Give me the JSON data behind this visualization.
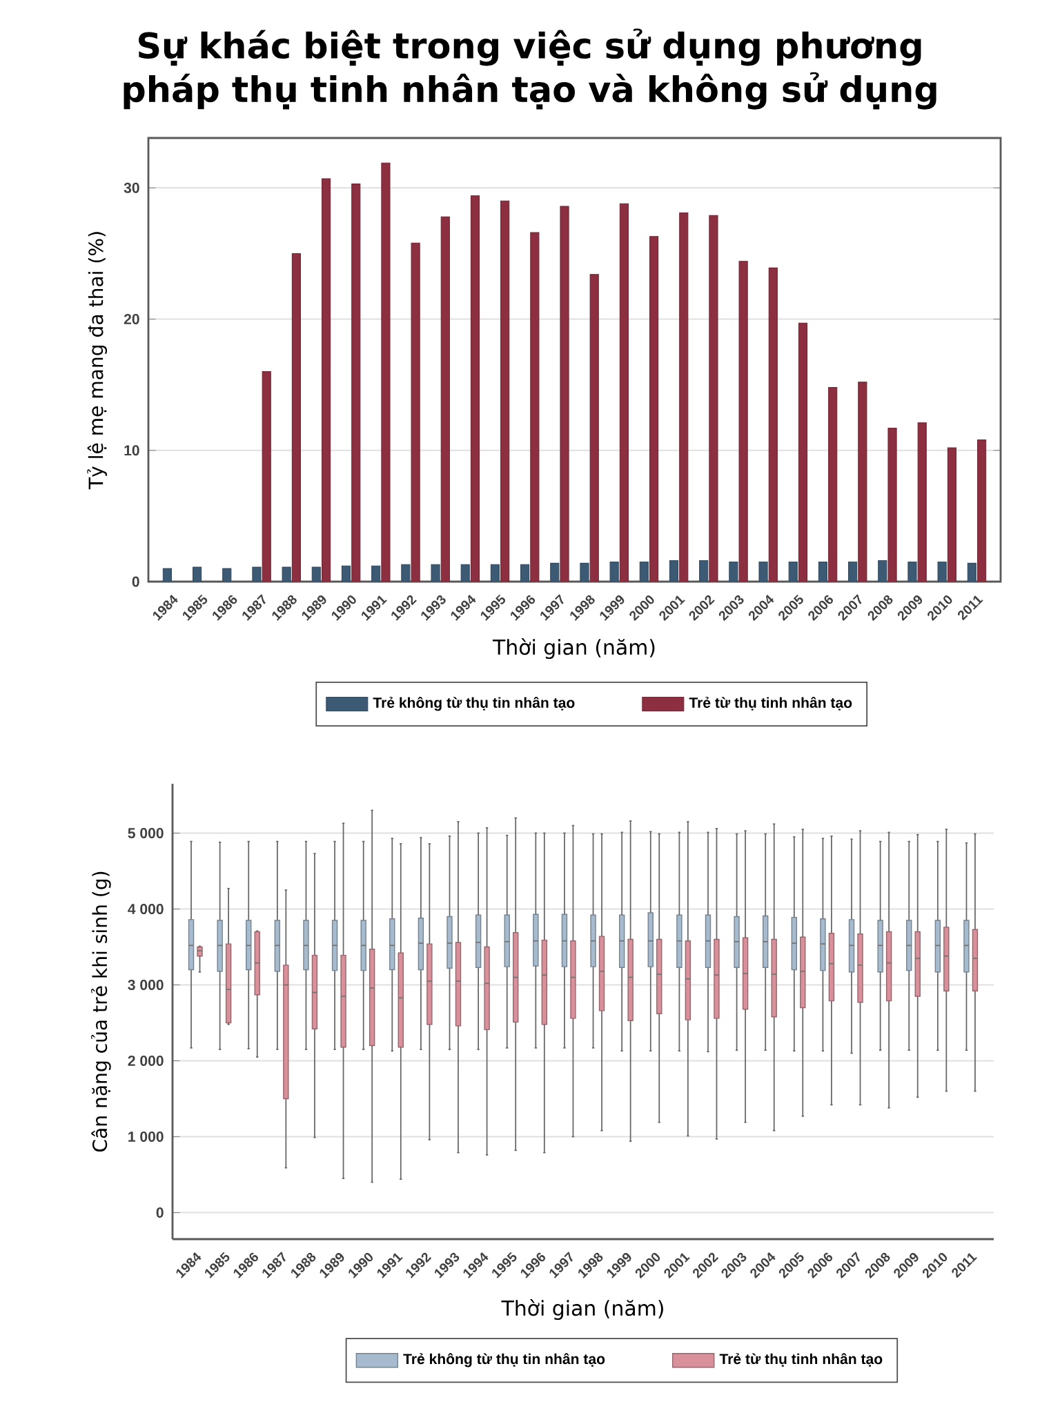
{
  "chart_data": [
    {
      "type": "bar",
      "title": "Sự khác biệt trong việc sử dụng phương pháp thụ tinh nhân tạo và không sử dụng",
      "xlabel": "Thời gian (năm)",
      "ylabel": "Tỷ lệ mẹ mang đa thai (%)",
      "categories": [
        "1984",
        "1985",
        "1986",
        "1987",
        "1988",
        "1989",
        "1990",
        "1991",
        "1992",
        "1993",
        "1994",
        "1995",
        "1996",
        "1997",
        "1998",
        "1999",
        "2000",
        "2001",
        "2002",
        "2003",
        "2004",
        "2005",
        "2006",
        "2007",
        "2008",
        "2009",
        "2010",
        "2011"
      ],
      "series": [
        {
          "name": "Trẻ không từ thụ tin nhân tạo",
          "color": "#3d5a74",
          "values": [
            1.0,
            1.1,
            1.0,
            1.1,
            1.1,
            1.1,
            1.2,
            1.2,
            1.3,
            1.3,
            1.3,
            1.3,
            1.3,
            1.4,
            1.4,
            1.5,
            1.5,
            1.6,
            1.6,
            1.5,
            1.5,
            1.5,
            1.5,
            1.5,
            1.6,
            1.5,
            1.5,
            1.4
          ]
        },
        {
          "name": "Trẻ từ thụ tinh nhân tạo",
          "color": "#8c2f40",
          "values": [
            null,
            null,
            null,
            16.0,
            25.0,
            30.7,
            30.3,
            31.9,
            25.8,
            27.8,
            29.4,
            29.0,
            26.6,
            28.6,
            23.4,
            28.8,
            26.3,
            28.1,
            27.9,
            24.4,
            23.9,
            19.7,
            14.8,
            15.2,
            11.7,
            12.1,
            10.2,
            10.8
          ]
        }
      ],
      "ylim": [
        0,
        33.8
      ],
      "yticks": [
        0,
        10,
        20,
        30
      ],
      "grid": "y",
      "legend": "bottom"
    },
    {
      "type": "box",
      "xlabel": "Thời gian (năm)",
      "ylabel": "Cân nặng của trẻ khi sinh (g)",
      "categories": [
        "1984",
        "1985",
        "1986",
        "1987",
        "1988",
        "1989",
        "1990",
        "1991",
        "1992",
        "1993",
        "1994",
        "1995",
        "1996",
        "1997",
        "1998",
        "1999",
        "2000",
        "2001",
        "2002",
        "2003",
        "2004",
        "2005",
        "2006",
        "2007",
        "2008",
        "2009",
        "2010",
        "2011"
      ],
      "series": [
        {
          "name": "Trẻ không từ thụ tin nhân tạo",
          "color": "#a7bbce",
          "boxes": [
            {
              "low": 2170,
              "q1": 3200,
              "median": 3520,
              "q3": 3860,
              "high": 4890
            },
            {
              "low": 2150,
              "q1": 3180,
              "median": 3520,
              "q3": 3850,
              "high": 4880
            },
            {
              "low": 2160,
              "q1": 3200,
              "median": 3520,
              "q3": 3850,
              "high": 4890
            },
            {
              "low": 2150,
              "q1": 3180,
              "median": 3520,
              "q3": 3850,
              "high": 4890
            },
            {
              "low": 2150,
              "q1": 3200,
              "median": 3520,
              "q3": 3850,
              "high": 4890
            },
            {
              "low": 2150,
              "q1": 3190,
              "median": 3520,
              "q3": 3850,
              "high": 4890
            },
            {
              "low": 2150,
              "q1": 3190,
              "median": 3520,
              "q3": 3850,
              "high": 4890
            },
            {
              "low": 2130,
              "q1": 3200,
              "median": 3520,
              "q3": 3870,
              "high": 4930
            },
            {
              "low": 2150,
              "q1": 3200,
              "median": 3550,
              "q3": 3880,
              "high": 4940
            },
            {
              "low": 2150,
              "q1": 3220,
              "median": 3550,
              "q3": 3900,
              "high": 4960
            },
            {
              "low": 2150,
              "q1": 3230,
              "median": 3560,
              "q3": 3920,
              "high": 5000
            },
            {
              "low": 2170,
              "q1": 3240,
              "median": 3570,
              "q3": 3920,
              "high": 4970
            },
            {
              "low": 2170,
              "q1": 3250,
              "median": 3580,
              "q3": 3930,
              "high": 5000
            },
            {
              "low": 2170,
              "q1": 3240,
              "median": 3580,
              "q3": 3930,
              "high": 5000
            },
            {
              "low": 2170,
              "q1": 3240,
              "median": 3580,
              "q3": 3920,
              "high": 4990
            },
            {
              "low": 2130,
              "q1": 3230,
              "median": 3580,
              "q3": 3920,
              "high": 5010
            },
            {
              "low": 2130,
              "q1": 3240,
              "median": 3580,
              "q3": 3950,
              "high": 5020
            },
            {
              "low": 2130,
              "q1": 3230,
              "median": 3580,
              "q3": 3920,
              "high": 5010
            },
            {
              "low": 2120,
              "q1": 3230,
              "median": 3580,
              "q3": 3920,
              "high": 5010
            },
            {
              "low": 2140,
              "q1": 3230,
              "median": 3570,
              "q3": 3900,
              "high": 4990
            },
            {
              "low": 2140,
              "q1": 3230,
              "median": 3570,
              "q3": 3910,
              "high": 4990
            },
            {
              "low": 2130,
              "q1": 3200,
              "median": 3550,
              "q3": 3890,
              "high": 4950
            },
            {
              "low": 2130,
              "q1": 3190,
              "median": 3540,
              "q3": 3870,
              "high": 4930
            },
            {
              "low": 2100,
              "q1": 3170,
              "median": 3520,
              "q3": 3860,
              "high": 4920
            },
            {
              "low": 2140,
              "q1": 3170,
              "median": 3520,
              "q3": 3850,
              "high": 4890
            },
            {
              "low": 2140,
              "q1": 3190,
              "median": 3520,
              "q3": 3850,
              "high": 4890
            },
            {
              "low": 2140,
              "q1": 3170,
              "median": 3520,
              "q3": 3850,
              "high": 4890
            },
            {
              "low": 2140,
              "q1": 3170,
              "median": 3520,
              "q3": 3850,
              "high": 4870
            }
          ]
        },
        {
          "name": "Trẻ từ thụ tinh nhân tạo",
          "color": "#d8919b",
          "boxes": [
            {
              "low": 3170,
              "q1": 3380,
              "median": 3450,
              "q3": 3500,
              "high": 3510
            },
            {
              "low": 2480,
              "q1": 2500,
              "median": 2940,
              "q3": 3540,
              "high": 4270
            },
            {
              "low": 2050,
              "q1": 2870,
              "median": 3290,
              "q3": 3700,
              "high": 3710
            },
            {
              "low": 590,
              "q1": 1500,
              "median": 3000,
              "q3": 3260,
              "high": 4250
            },
            {
              "low": 990,
              "q1": 2420,
              "median": 2900,
              "q3": 3390,
              "high": 4730
            },
            {
              "low": 450,
              "q1": 2180,
              "median": 2850,
              "q3": 3390,
              "high": 5130
            },
            {
              "low": 400,
              "q1": 2200,
              "median": 2960,
              "q3": 3470,
              "high": 5300
            },
            {
              "low": 440,
              "q1": 2180,
              "median": 2830,
              "q3": 3420,
              "high": 4860
            },
            {
              "low": 960,
              "q1": 2480,
              "median": 3050,
              "q3": 3540,
              "high": 4860
            },
            {
              "low": 790,
              "q1": 2460,
              "median": 3050,
              "q3": 3560,
              "high": 5150
            },
            {
              "low": 760,
              "q1": 2410,
              "median": 3020,
              "q3": 3500,
              "high": 5070
            },
            {
              "low": 820,
              "q1": 2510,
              "median": 3100,
              "q3": 3690,
              "high": 5200
            },
            {
              "low": 790,
              "q1": 2480,
              "median": 3130,
              "q3": 3590,
              "high": 5000
            },
            {
              "low": 1000,
              "q1": 2560,
              "median": 3100,
              "q3": 3580,
              "high": 5100
            },
            {
              "low": 1080,
              "q1": 2660,
              "median": 3180,
              "q3": 3640,
              "high": 4990
            },
            {
              "low": 940,
              "q1": 2530,
              "median": 3100,
              "q3": 3600,
              "high": 5160
            },
            {
              "low": 1190,
              "q1": 2620,
              "median": 3140,
              "q3": 3600,
              "high": 4990
            },
            {
              "low": 1010,
              "q1": 2540,
              "median": 3080,
              "q3": 3580,
              "high": 5150
            },
            {
              "low": 970,
              "q1": 2560,
              "median": 3130,
              "q3": 3600,
              "high": 5060
            },
            {
              "low": 1190,
              "q1": 2680,
              "median": 3150,
              "q3": 3620,
              "high": 5030
            },
            {
              "low": 1080,
              "q1": 2580,
              "median": 3140,
              "q3": 3600,
              "high": 5120
            },
            {
              "low": 1270,
              "q1": 2700,
              "median": 3180,
              "q3": 3630,
              "high": 5050
            },
            {
              "low": 1420,
              "q1": 2790,
              "median": 3280,
              "q3": 3680,
              "high": 4960
            },
            {
              "low": 1420,
              "q1": 2770,
              "median": 3260,
              "q3": 3670,
              "high": 5030
            },
            {
              "low": 1380,
              "q1": 2790,
              "median": 3290,
              "q3": 3700,
              "high": 5010
            },
            {
              "low": 1520,
              "q1": 2850,
              "median": 3350,
              "q3": 3700,
              "high": 4980
            },
            {
              "low": 1600,
              "q1": 2920,
              "median": 3380,
              "q3": 3760,
              "high": 5050
            },
            {
              "low": 1600,
              "q1": 2920,
              "median": 3350,
              "q3": 3730,
              "high": 4990
            }
          ]
        }
      ],
      "ylim": [
        -350,
        5650
      ],
      "yticks": [
        0,
        {
          "value": 1000,
          "label": "1 000"
        },
        {
          "value": 2000,
          "label": "2 000"
        },
        {
          "value": 3000,
          "label": "3 000"
        },
        {
          "value": 4000,
          "label": "4 000"
        },
        {
          "value": 5000,
          "label": "5 000"
        }
      ],
      "grid": "y",
      "legend": "bottom"
    }
  ]
}
